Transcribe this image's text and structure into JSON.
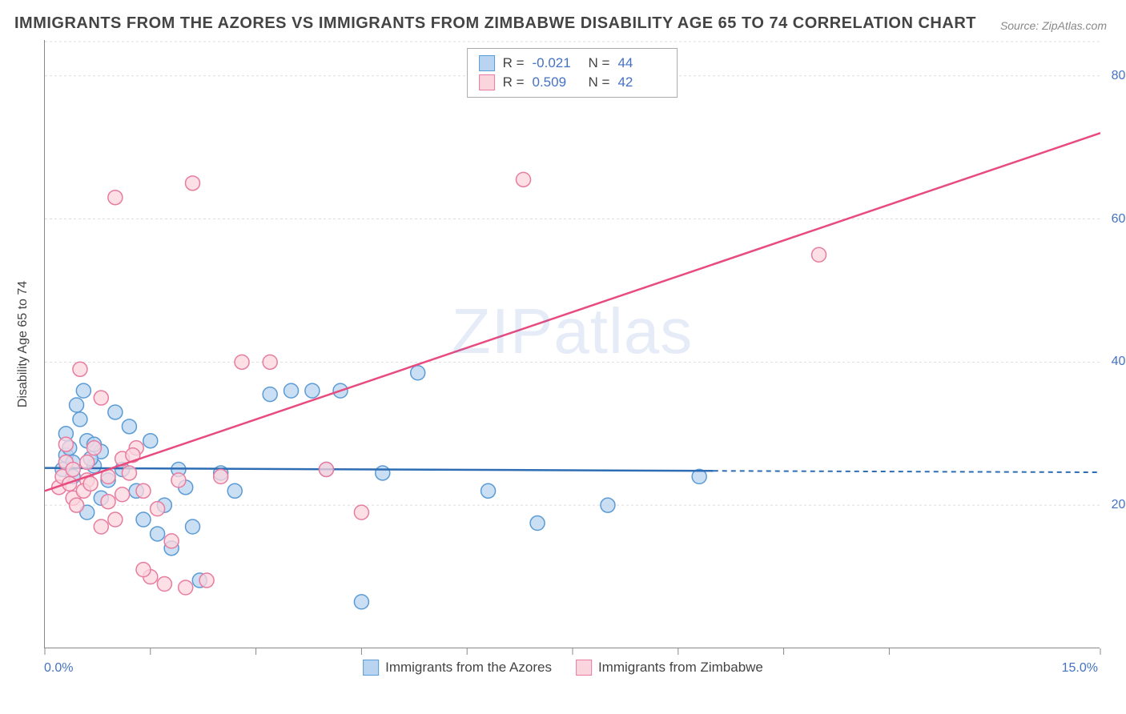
{
  "title": "IMMIGRANTS FROM THE AZORES VS IMMIGRANTS FROM ZIMBABWE DISABILITY AGE 65 TO 74 CORRELATION CHART",
  "source": "Source: ZipAtlas.com",
  "watermark": "ZIPatlas",
  "y_axis_label": "Disability Age 65 to 74",
  "chart": {
    "type": "scatter",
    "xlim": [
      0.0,
      15.0
    ],
    "ylim": [
      0.0,
      85.0
    ],
    "x_ticks": [
      0.0,
      1.5,
      3.0,
      4.5,
      6.0,
      7.5,
      9.0,
      10.5,
      12.0,
      15.0
    ],
    "x_tick_labels": {
      "0": "0.0%",
      "15": "15.0%"
    },
    "y_ticks": [
      20.0,
      40.0,
      60.0,
      80.0
    ],
    "y_tick_labels": [
      "20.0%",
      "40.0%",
      "60.0%",
      "80.0%"
    ],
    "grid_color": "#dddddd",
    "background_color": "#ffffff",
    "axis_color": "#888888",
    "marker_radius": 9,
    "marker_stroke_width": 1.5,
    "line_width": 2.5,
    "series": [
      {
        "name": "Immigrants from the Azores",
        "color_fill": "#b8d4f0",
        "color_stroke": "#5b9bd5",
        "line_color": "#2e6db4",
        "R": "-0.021",
        "N": "44",
        "regression": {
          "x1": 0.0,
          "y1": 25.2,
          "x2": 9.5,
          "y2": 24.8,
          "x2_dash": 15.0,
          "y2_dash": 24.6
        },
        "points": [
          [
            0.3,
            27.0
          ],
          [
            0.35,
            28.0
          ],
          [
            0.4,
            26.0
          ],
          [
            0.25,
            25.0
          ],
          [
            0.3,
            30.0
          ],
          [
            0.5,
            32.0
          ],
          [
            0.45,
            34.0
          ],
          [
            0.55,
            36.0
          ],
          [
            0.4,
            24.0
          ],
          [
            0.6,
            29.0
          ],
          [
            0.7,
            25.5
          ],
          [
            0.8,
            27.5
          ],
          [
            0.9,
            23.5
          ],
          [
            1.0,
            33.0
          ],
          [
            1.1,
            25.0
          ],
          [
            1.2,
            31.0
          ],
          [
            1.3,
            22.0
          ],
          [
            1.4,
            18.0
          ],
          [
            1.5,
            29.0
          ],
          [
            1.6,
            16.0
          ],
          [
            1.7,
            20.0
          ],
          [
            1.8,
            14.0
          ],
          [
            1.9,
            25.0
          ],
          [
            2.0,
            22.5
          ],
          [
            2.1,
            17.0
          ],
          [
            2.2,
            9.5
          ],
          [
            2.5,
            24.5
          ],
          [
            2.7,
            22.0
          ],
          [
            3.2,
            35.5
          ],
          [
            3.5,
            36.0
          ],
          [
            3.8,
            36.0
          ],
          [
            4.0,
            25.0
          ],
          [
            4.2,
            36.0
          ],
          [
            4.5,
            6.5
          ],
          [
            4.8,
            24.5
          ],
          [
            5.3,
            38.5
          ],
          [
            6.3,
            22.0
          ],
          [
            7.0,
            17.5
          ],
          [
            8.0,
            20.0
          ],
          [
            9.3,
            24.0
          ],
          [
            0.6,
            19.0
          ],
          [
            0.65,
            26.5
          ],
          [
            0.7,
            28.5
          ],
          [
            0.8,
            21.0
          ]
        ]
      },
      {
        "name": "Immigrants from Zimbabwe",
        "color_fill": "#fbd5de",
        "color_stroke": "#e87ca0",
        "line_color": "#e84b7e",
        "R": "0.509",
        "N": "42",
        "regression": {
          "x1": 0.0,
          "y1": 22.0,
          "x2": 15.0,
          "y2": 72.0
        },
        "points": [
          [
            0.2,
            22.5
          ],
          [
            0.25,
            24.0
          ],
          [
            0.3,
            26.0
          ],
          [
            0.35,
            23.0
          ],
          [
            0.4,
            25.0
          ],
          [
            0.5,
            39.0
          ],
          [
            0.6,
            23.5
          ],
          [
            0.7,
            28.0
          ],
          [
            0.8,
            35.0
          ],
          [
            0.9,
            24.0
          ],
          [
            1.0,
            18.0
          ],
          [
            1.1,
            26.5
          ],
          [
            1.2,
            24.5
          ],
          [
            1.3,
            28.0
          ],
          [
            1.4,
            22.0
          ],
          [
            1.0,
            63.0
          ],
          [
            1.5,
            10.0
          ],
          [
            1.6,
            19.5
          ],
          [
            1.7,
            9.0
          ],
          [
            1.8,
            15.0
          ],
          [
            1.9,
            23.5
          ],
          [
            2.0,
            8.5
          ],
          [
            2.1,
            65.0
          ],
          [
            2.3,
            9.5
          ],
          [
            2.5,
            24.0
          ],
          [
            2.8,
            40.0
          ],
          [
            3.2,
            40.0
          ],
          [
            4.0,
            25.0
          ],
          [
            4.5,
            19.0
          ],
          [
            6.8,
            65.5
          ],
          [
            11.0,
            55.0
          ],
          [
            0.3,
            28.5
          ],
          [
            0.4,
            21.0
          ],
          [
            0.45,
            20.0
          ],
          [
            0.55,
            22.0
          ],
          [
            0.6,
            26.0
          ],
          [
            0.65,
            23.0
          ],
          [
            0.8,
            17.0
          ],
          [
            0.9,
            20.5
          ],
          [
            1.1,
            21.5
          ],
          [
            1.25,
            27.0
          ],
          [
            1.4,
            11.0
          ]
        ]
      }
    ]
  },
  "legend_labels": {
    "r_prefix": "R =",
    "n_prefix": "N ="
  }
}
